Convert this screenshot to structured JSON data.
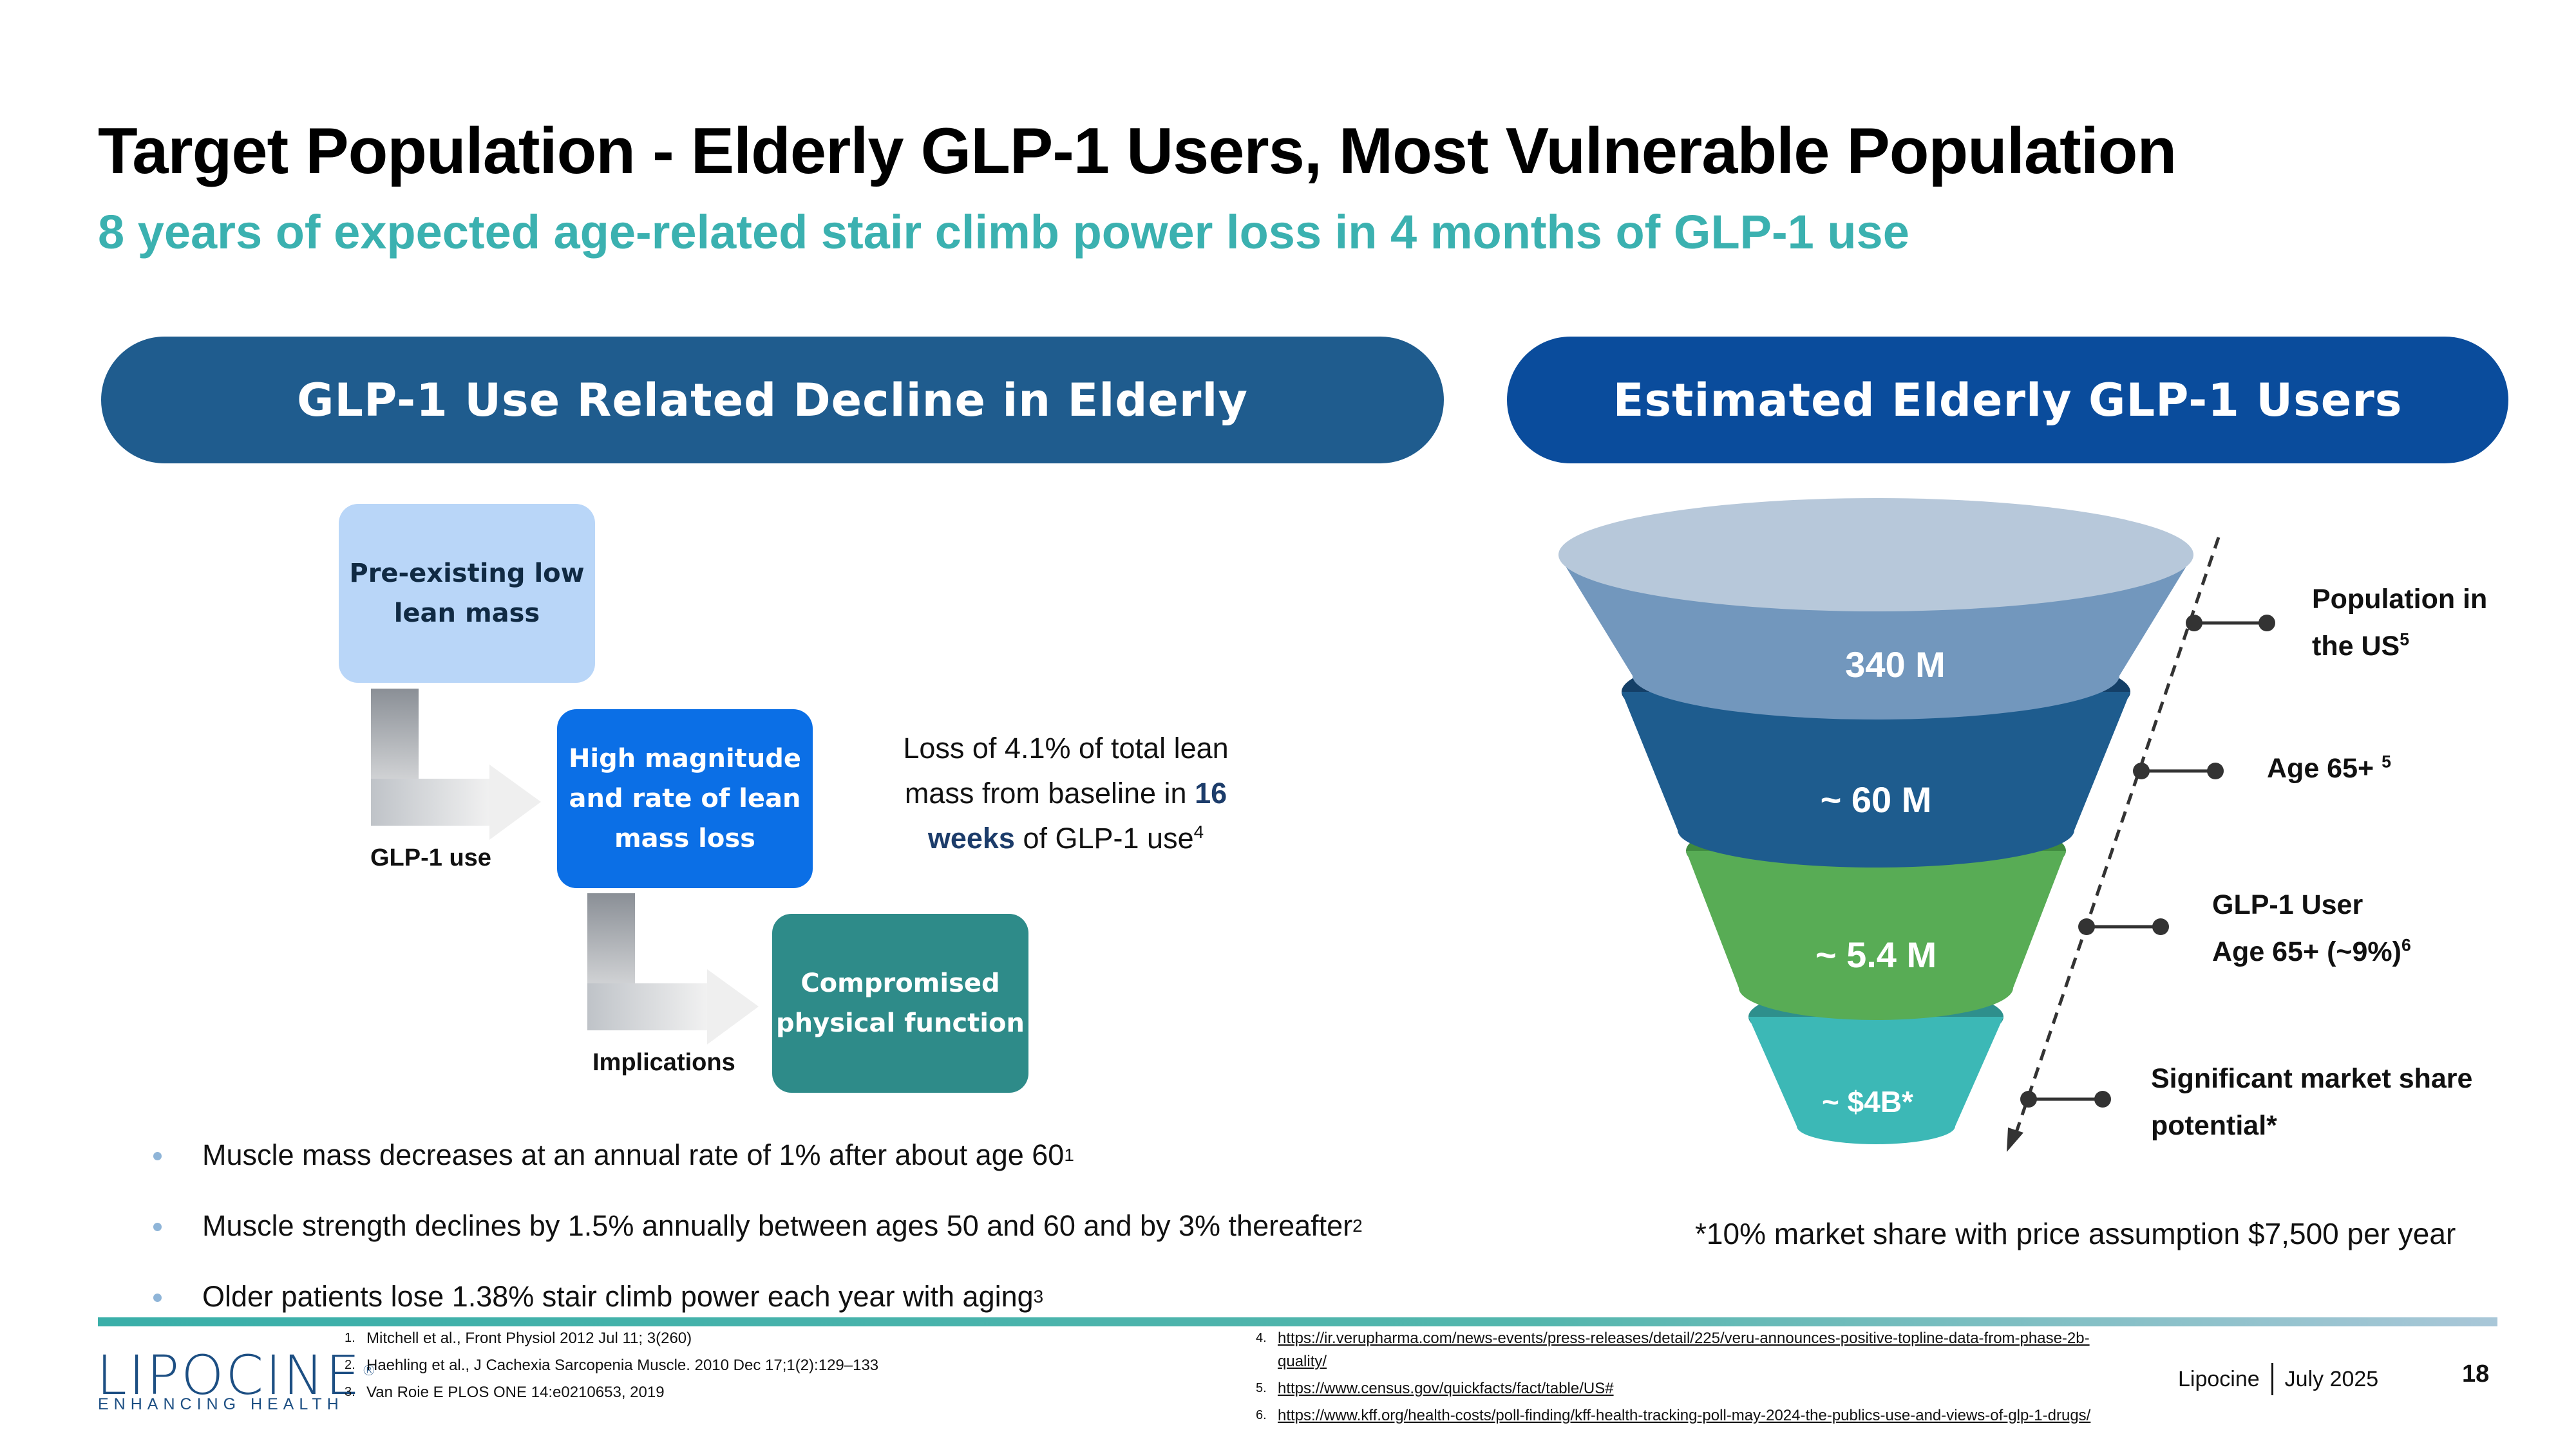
{
  "slide": {
    "title": "Target Population - Elderly GLP-1 Users, Most Vulnerable Population",
    "subtitle": "8 years of expected age-related stair climb power loss in 4 months of GLP-1 use"
  },
  "left_panel": {
    "header": "GLP-1 Use Related Decline in Elderly",
    "box1": [
      "Pre-existing low",
      "lean mass"
    ],
    "box2": [
      "High magnitude",
      "and rate of lean",
      "mass loss"
    ],
    "box3": [
      "Compromised",
      "physical function"
    ],
    "arrow1_label": "GLP-1 use",
    "arrow2_label": "Implications",
    "loss_text": {
      "line1": "Loss of 4.1% of total lean",
      "line2_pre": "mass from baseline in ",
      "line2_hl": "16",
      "line3_hl": "weeks",
      "line3_post": " of GLP-1 use",
      "line3_sup": "4"
    },
    "bullets": [
      {
        "text": "Muscle mass decreases at an annual rate of 1% after about age 60",
        "sup": "1"
      },
      {
        "text": "Muscle strength declines by 1.5% annually between ages 50 and 60 and by 3% thereafter",
        "sup": "2"
      },
      {
        "text": "Older patients lose 1.38% stair climb power each year with aging",
        "sup": "3"
      }
    ]
  },
  "right_panel": {
    "header": "Estimated Elderly GLP-1 Users",
    "funnel": [
      {
        "value": "340 M",
        "color": "#7297bd"
      },
      {
        "value": "~ 60 M",
        "color": "#1e5c8e"
      },
      {
        "value": "~ 5.4 M",
        "color": "#58ac55"
      },
      {
        "value": "~ $4B*",
        "color": "#3bb7b5"
      }
    ],
    "labels": [
      {
        "line1": "Population in",
        "line2": "the US",
        "sup": "5"
      },
      {
        "line1": "Age 65+ ",
        "sup": "5"
      },
      {
        "line1": "GLP-1 User",
        "line2": "Age 65+ (~9%)",
        "sup": "6"
      },
      {
        "line1": "Significant market share",
        "line2": "potential*"
      }
    ],
    "note": "*10% market share with price assumption $7,500 per year"
  },
  "footer": {
    "logo": "LIPOCINE",
    "logo_mark": "®",
    "logo_tagline": "ENHANCING HEALTH",
    "refs_left": [
      {
        "n": "1.",
        "text": "Mitchell et al., Front Physiol 2012 Jul 11; 3(260)"
      },
      {
        "n": "2.",
        "text": "Haehling et al., J Cachexia Sarcopenia Muscle. 2010 Dec 17;1(2):129–133"
      },
      {
        "n": "3.",
        "text": "Van Roie E PLOS ONE 14:e0210653, 2019"
      }
    ],
    "refs_right": [
      {
        "n": "4.",
        "text": "https://ir.verupharma.com/news-events/press-releases/detail/225/veru-announces-positive-topline-data-from-phase-2b-quality/"
      },
      {
        "n": "5.",
        "text": "https://www.census.gov/quickfacts/fact/table/US#"
      },
      {
        "n": "6.",
        "text": "https://www.kff.org/health-costs/poll-finding/kff-health-tracking-poll-may-2024-the-publics-use-and-views-of-glp-1-drugs/"
      }
    ],
    "company": "Lipocine",
    "date": "July 2025",
    "page_number": "18"
  }
}
